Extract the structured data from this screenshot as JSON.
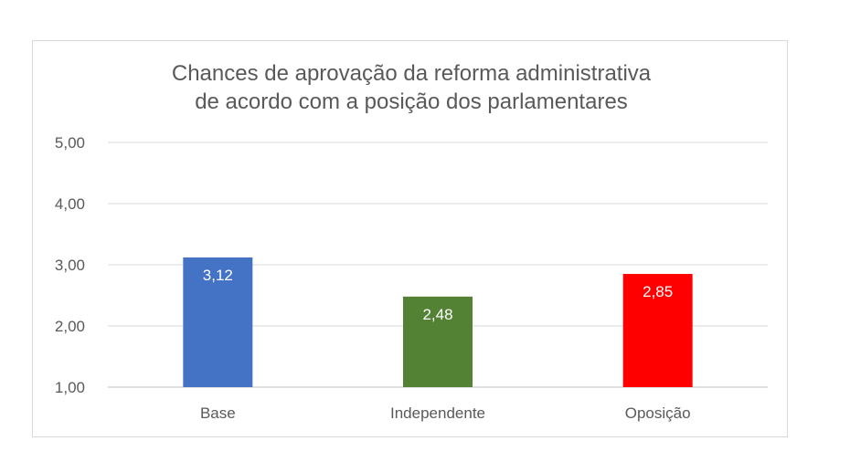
{
  "chart_data": {
    "type": "bar",
    "title_line1": "Chances de aprovação da reforma administrativa",
    "title_line2": "de acordo com a posição dos parlamentares",
    "categories": [
      "Base",
      "Independente",
      "Oposição"
    ],
    "values": [
      3.12,
      2.48,
      2.85
    ],
    "value_labels": [
      "3,12",
      "2,48",
      "2,85"
    ],
    "bar_colors": [
      "#4472c4",
      "#548235",
      "#ff0000"
    ],
    "yticks": [
      1,
      2,
      3,
      4,
      5
    ],
    "ytick_labels": [
      "1,00",
      "2,00",
      "3,00",
      "4,00",
      "5,00"
    ],
    "ylim": [
      1,
      5
    ],
    "xlabel": "",
    "ylabel": "",
    "grid": true,
    "legend": "none"
  }
}
